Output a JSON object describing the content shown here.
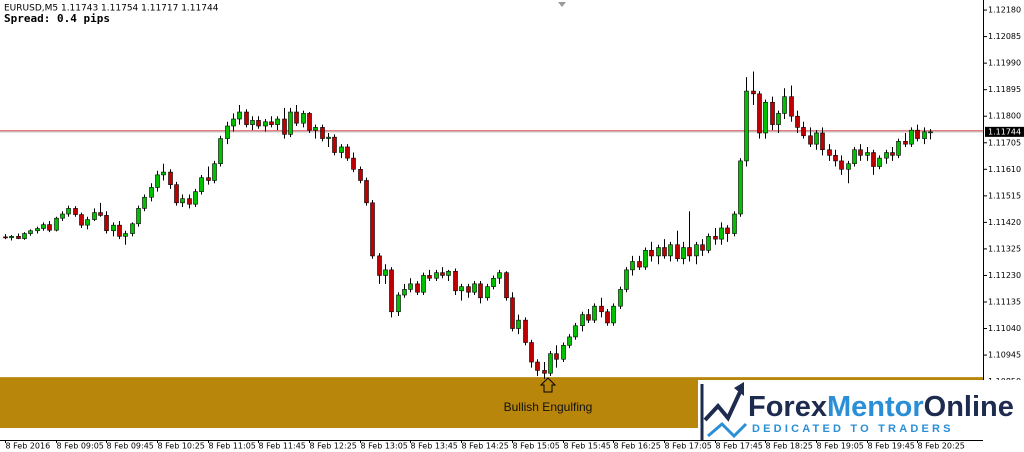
{
  "chart_data": {
    "type": "candlestick",
    "title": "EURUSD,M5  1.11743 1.11754 1.11717 1.11744",
    "subtitle": "Spread: 0.4 pips",
    "annotation": "Bullish Engulfing",
    "up_color": "#00c000",
    "down_color": "#c00000",
    "wick_color": "#000000",
    "ask_line": 1.11748,
    "ask_line_color": "#e05050",
    "bid_line": 1.11744,
    "bid_line_color": "#b8b8b8",
    "zone": [
      1.10684,
      1.10866
    ],
    "zone_color": "#b8860b",
    "ylim": [
      1.10641,
      1.12216
    ],
    "yticks": [
      {
        "value": 1.1218,
        "label": "1.12180"
      },
      1.12085,
      {
        "value": 1.1199,
        "label": "1.11990"
      },
      1.11895,
      {
        "value": 1.118,
        "label": "1.11800"
      },
      1.11705,
      {
        "value": 1.1161,
        "label": "1.11610"
      },
      1.11515,
      {
        "value": 1.1142,
        "label": "1.11420"
      },
      1.11325,
      {
        "value": 1.1123,
        "label": "1.11230"
      },
      1.11135,
      {
        "value": 1.1104,
        "label": "1.11040"
      },
      1.10945,
      {
        "value": 1.1085,
        "label": "1.10850"
      },
      1.10755,
      {
        "value": 1.1066,
        "label": "1.10660"
      }
    ],
    "x": [
      "8 Feb 2016",
      null,
      null,
      null,
      null,
      null,
      null,
      null,
      "8 Feb 09:05",
      null,
      null,
      null,
      null,
      null,
      null,
      null,
      "8 Feb 09:45",
      null,
      null,
      null,
      null,
      null,
      null,
      null,
      "8 Feb 10:25",
      null,
      null,
      null,
      null,
      null,
      null,
      null,
      "8 Feb 11:05",
      null,
      null,
      null,
      null,
      null,
      null,
      null,
      "8 Feb 11:45",
      null,
      null,
      null,
      null,
      null,
      null,
      null,
      "8 Feb 12:25",
      null,
      null,
      null,
      null,
      null,
      null,
      null,
      "8 Feb 13:05",
      null,
      null,
      null,
      null,
      null,
      null,
      null,
      "8 Feb 13:45",
      null,
      null,
      null,
      null,
      null,
      null,
      null,
      "8 Feb 14:25",
      null,
      null,
      null,
      null,
      null,
      null,
      null,
      "8 Feb 15:05",
      null,
      null,
      null,
      null,
      null,
      null,
      null,
      "8 Feb 15:45",
      null,
      null,
      null,
      null,
      null,
      null,
      null,
      "8 Feb 16:25",
      null,
      null,
      null,
      null,
      null,
      null,
      null,
      "8 Feb 17:05",
      null,
      null,
      null,
      null,
      null,
      null,
      null,
      "8 Feb 17:45",
      null,
      null,
      null,
      null,
      null,
      null,
      null,
      "8 Feb 18:25",
      null,
      null,
      null,
      null,
      null,
      null,
      null,
      "8 Feb 19:05",
      null,
      null,
      null,
      null,
      null,
      null,
      null,
      "8 Feb 19:45",
      null,
      null,
      null,
      null,
      null,
      null,
      null,
      "8 Feb 20:25",
      null,
      null
    ],
    "values": [
      [
        1.11368,
        1.11378,
        1.1136,
        1.11365
      ],
      [
        1.11365,
        1.11375,
        1.11355,
        1.1137
      ],
      [
        1.1137,
        1.1138,
        1.1136,
        1.11362
      ],
      [
        1.11362,
        1.11385,
        1.11358,
        1.1138
      ],
      [
        1.1138,
        1.11395,
        1.11372,
        1.1139
      ],
      [
        1.1139,
        1.11405,
        1.1138,
        1.11398
      ],
      [
        1.11398,
        1.1142,
        1.1139,
        1.11412
      ],
      [
        1.11412,
        1.11425,
        1.11385,
        1.11392
      ],
      [
        1.11392,
        1.1144,
        1.11388,
        1.11435
      ],
      [
        1.11435,
        1.1146,
        1.11425,
        1.1145
      ],
      [
        1.1145,
        1.1148,
        1.1144,
        1.1147
      ],
      [
        1.1147,
        1.11478,
        1.1144,
        1.11448
      ],
      [
        1.11448,
        1.11455,
        1.114,
        1.1141
      ],
      [
        1.1141,
        1.1144,
        1.11395,
        1.1143
      ],
      [
        1.1143,
        1.1147,
        1.11425,
        1.11455
      ],
      [
        1.11455,
        1.1149,
        1.1144,
        1.11445
      ],
      [
        1.11445,
        1.1146,
        1.1138,
        1.1139
      ],
      [
        1.1139,
        1.1142,
        1.1137,
        1.1141
      ],
      [
        1.1141,
        1.11425,
        1.1136,
        1.1137
      ],
      [
        1.1137,
        1.1139,
        1.1134,
        1.1138
      ],
      [
        1.1138,
        1.1142,
        1.1137,
        1.11415
      ],
      [
        1.11415,
        1.1148,
        1.11405,
        1.1147
      ],
      [
        1.1147,
        1.1152,
        1.1146,
        1.1151
      ],
      [
        1.1151,
        1.1156,
        1.11495,
        1.11545
      ],
      [
        1.11545,
        1.11605,
        1.1153,
        1.1159
      ],
      [
        1.1159,
        1.1163,
        1.1157,
        1.116
      ],
      [
        1.116,
        1.1161,
        1.1154,
        1.11555
      ],
      [
        1.11555,
        1.11565,
        1.1148,
        1.1149
      ],
      [
        1.1149,
        1.1152,
        1.11475,
        1.11505
      ],
      [
        1.11505,
        1.1152,
        1.1147,
        1.11485
      ],
      [
        1.11485,
        1.1154,
        1.11475,
        1.1153
      ],
      [
        1.1153,
        1.1159,
        1.1152,
        1.1158
      ],
      [
        1.1158,
        1.1162,
        1.11555,
        1.1157
      ],
      [
        1.1157,
        1.1164,
        1.1156,
        1.1163
      ],
      [
        1.1163,
        1.1173,
        1.1162,
        1.1172
      ],
      [
        1.1172,
        1.1178,
        1.117,
        1.11765
      ],
      [
        1.11765,
        1.1181,
        1.11745,
        1.1179
      ],
      [
        1.1179,
        1.1184,
        1.1177,
        1.11815
      ],
      [
        1.11815,
        1.11825,
        1.1176,
        1.1177
      ],
      [
        1.1177,
        1.118,
        1.1175,
        1.11785
      ],
      [
        1.11785,
        1.118,
        1.11755,
        1.11765
      ],
      [
        1.11765,
        1.1179,
        1.11745,
        1.1178
      ],
      [
        1.1178,
        1.118,
        1.1176,
        1.1177
      ],
      [
        1.1177,
        1.118,
        1.1175,
        1.1179
      ],
      [
        1.1179,
        1.1183,
        1.1172,
        1.11735
      ],
      [
        1.11735,
        1.1183,
        1.11725,
        1.11815
      ],
      [
        1.11815,
        1.1184,
        1.11765,
        1.11775
      ],
      [
        1.11775,
        1.1182,
        1.1176,
        1.1181
      ],
      [
        1.1181,
        1.11815,
        1.1174,
        1.1175
      ],
      [
        1.1175,
        1.1177,
        1.1172,
        1.1176
      ],
      [
        1.1176,
        1.1177,
        1.1171,
        1.1172
      ],
      [
        1.1172,
        1.1174,
        1.1169,
        1.11725
      ],
      [
        1.11725,
        1.11735,
        1.1166,
        1.1167
      ],
      [
        1.1167,
        1.117,
        1.1165,
        1.1169
      ],
      [
        1.1169,
        1.117,
        1.1164,
        1.1165
      ],
      [
        1.1165,
        1.1167,
        1.116,
        1.1161
      ],
      [
        1.1161,
        1.1162,
        1.1156,
        1.1157
      ],
      [
        1.1157,
        1.1158,
        1.1148,
        1.1149
      ],
      [
        1.1149,
        1.115,
        1.1129,
        1.113
      ],
      [
        1.113,
        1.1131,
        1.112,
        1.1123
      ],
      [
        1.1123,
        1.1127,
        1.112,
        1.1125
      ],
      [
        1.1125,
        1.1126,
        1.1108,
        1.111
      ],
      [
        1.111,
        1.1117,
        1.11085,
        1.1116
      ],
      [
        1.1116,
        1.112,
        1.1115,
        1.1118
      ],
      [
        1.1118,
        1.1122,
        1.1117,
        1.112
      ],
      [
        1.112,
        1.1121,
        1.1116,
        1.1117
      ],
      [
        1.1117,
        1.1124,
        1.1116,
        1.1123
      ],
      [
        1.1123,
        1.1125,
        1.1121,
        1.1122
      ],
      [
        1.1122,
        1.1125,
        1.1121,
        1.1124
      ],
      [
        1.1124,
        1.1126,
        1.1122,
        1.1123
      ],
      [
        1.1123,
        1.1125,
        1.1121,
        1.11245
      ],
      [
        1.11245,
        1.11255,
        1.1116,
        1.11175
      ],
      [
        1.11175,
        1.112,
        1.1114,
        1.1119
      ],
      [
        1.1119,
        1.112,
        1.1115,
        1.1117
      ],
      [
        1.1117,
        1.1121,
        1.1116,
        1.112
      ],
      [
        1.112,
        1.1121,
        1.1113,
        1.1115
      ],
      [
        1.1115,
        1.112,
        1.1114,
        1.1119
      ],
      [
        1.1119,
        1.1123,
        1.1118,
        1.1122
      ],
      [
        1.1122,
        1.1125,
        1.112,
        1.1124
      ],
      [
        1.1124,
        1.11245,
        1.1114,
        1.1115
      ],
      [
        1.1115,
        1.1117,
        1.1103,
        1.1104
      ],
      [
        1.1104,
        1.1109,
        1.1102,
        1.1107
      ],
      [
        1.1107,
        1.1108,
        1.1098,
        1.1099
      ],
      [
        1.1099,
        1.11,
        1.109,
        1.1092
      ],
      [
        1.1092,
        1.1093,
        1.1087,
        1.1089
      ],
      [
        1.1089,
        1.1092,
        1.1086,
        1.1088
      ],
      [
        1.1088,
        1.1096,
        1.1087,
        1.1095
      ],
      [
        1.1095,
        1.1098,
        1.109,
        1.1093
      ],
      [
        1.1093,
        1.1099,
        1.1092,
        1.1098
      ],
      [
        1.1098,
        1.1102,
        1.1097,
        1.1101
      ],
      [
        1.1101,
        1.1106,
        1.11,
        1.1105
      ],
      [
        1.1105,
        1.111,
        1.1103,
        1.1109
      ],
      [
        1.1109,
        1.1111,
        1.1106,
        1.1107
      ],
      [
        1.1107,
        1.1113,
        1.1106,
        1.1112
      ],
      [
        1.1112,
        1.1115,
        1.1108,
        1.111
      ],
      [
        1.111,
        1.1111,
        1.1105,
        1.1106
      ],
      [
        1.1106,
        1.1113,
        1.1105,
        1.1112
      ],
      [
        1.1112,
        1.1119,
        1.1111,
        1.1118
      ],
      [
        1.1118,
        1.1126,
        1.1117,
        1.1125
      ],
      [
        1.1125,
        1.113,
        1.1123,
        1.1128
      ],
      [
        1.1128,
        1.113,
        1.1125,
        1.1126
      ],
      [
        1.1126,
        1.1133,
        1.1125,
        1.1132
      ],
      [
        1.1132,
        1.1135,
        1.1128,
        1.113
      ],
      [
        1.113,
        1.1134,
        1.1127,
        1.1133
      ],
      [
        1.1133,
        1.1136,
        1.1129,
        1.113
      ],
      [
        1.113,
        1.1135,
        1.1128,
        1.1134
      ],
      [
        1.1134,
        1.1139,
        1.1128,
        1.1129
      ],
      [
        1.1129,
        1.1135,
        1.1127,
        1.1133
      ],
      [
        1.1133,
        1.1146,
        1.1128,
        1.113
      ],
      [
        1.113,
        1.1135,
        1.1127,
        1.1134
      ],
      [
        1.1134,
        1.1136,
        1.113,
        1.1132
      ],
      [
        1.1132,
        1.1138,
        1.1131,
        1.1137
      ],
      [
        1.1137,
        1.114,
        1.1134,
        1.1136
      ],
      [
        1.1136,
        1.1142,
        1.1134,
        1.114
      ],
      [
        1.114,
        1.1141,
        1.1135,
        1.1138
      ],
      [
        1.1138,
        1.1146,
        1.1137,
        1.1145
      ],
      [
        1.1145,
        1.1165,
        1.1144,
        1.1164
      ],
      [
        1.1164,
        1.1194,
        1.1162,
        1.1189
      ],
      [
        1.1189,
        1.1196,
        1.1184,
        1.1188
      ],
      [
        1.1188,
        1.1189,
        1.1172,
        1.1174
      ],
      [
        1.1174,
        1.1186,
        1.1172,
        1.1185
      ],
      [
        1.1185,
        1.1187,
        1.1175,
        1.1177
      ],
      [
        1.1177,
        1.1182,
        1.1174,
        1.1181
      ],
      [
        1.1181,
        1.119,
        1.1179,
        1.1187
      ],
      [
        1.1187,
        1.1191,
        1.1178,
        1.118
      ],
      [
        1.118,
        1.1182,
        1.1174,
        1.1176
      ],
      [
        1.1176,
        1.1178,
        1.1172,
        1.1173
      ],
      [
        1.1173,
        1.1176,
        1.1169,
        1.117
      ],
      [
        1.117,
        1.1175,
        1.1168,
        1.1174
      ],
      [
        1.1174,
        1.1176,
        1.1166,
        1.1168
      ],
      [
        1.1168,
        1.117,
        1.1164,
        1.1166
      ],
      [
        1.1166,
        1.1168,
        1.1162,
        1.1164
      ],
      [
        1.1164,
        1.1166,
        1.1159,
        1.1161
      ],
      [
        1.1161,
        1.1164,
        1.1156,
        1.1163
      ],
      [
        1.1163,
        1.1169,
        1.1162,
        1.1168
      ],
      [
        1.1168,
        1.117,
        1.1164,
        1.1166
      ],
      [
        1.1166,
        1.1169,
        1.1164,
        1.1167
      ],
      [
        1.1167,
        1.1168,
        1.1159,
        1.1162
      ],
      [
        1.1162,
        1.1166,
        1.1161,
        1.1165
      ],
      [
        1.1165,
        1.1168,
        1.1163,
        1.1167
      ],
      [
        1.1167,
        1.1169,
        1.1164,
        1.1166
      ],
      [
        1.1166,
        1.1172,
        1.1165,
        1.1171
      ],
      [
        1.1171,
        1.1174,
        1.1169,
        1.117
      ],
      [
        1.117,
        1.1176,
        1.1169,
        1.1175
      ],
      [
        1.1175,
        1.1177,
        1.1171,
        1.1172
      ],
      [
        1.1172,
        1.1176,
        1.117,
        1.11744
      ],
      [
        1.11743,
        1.11754,
        1.11717,
        1.11744
      ]
    ]
  },
  "watermark": {
    "name": [
      "Forex",
      "Mentor",
      "Online"
    ],
    "tagline": "DEDICATED TO TRADERS"
  }
}
